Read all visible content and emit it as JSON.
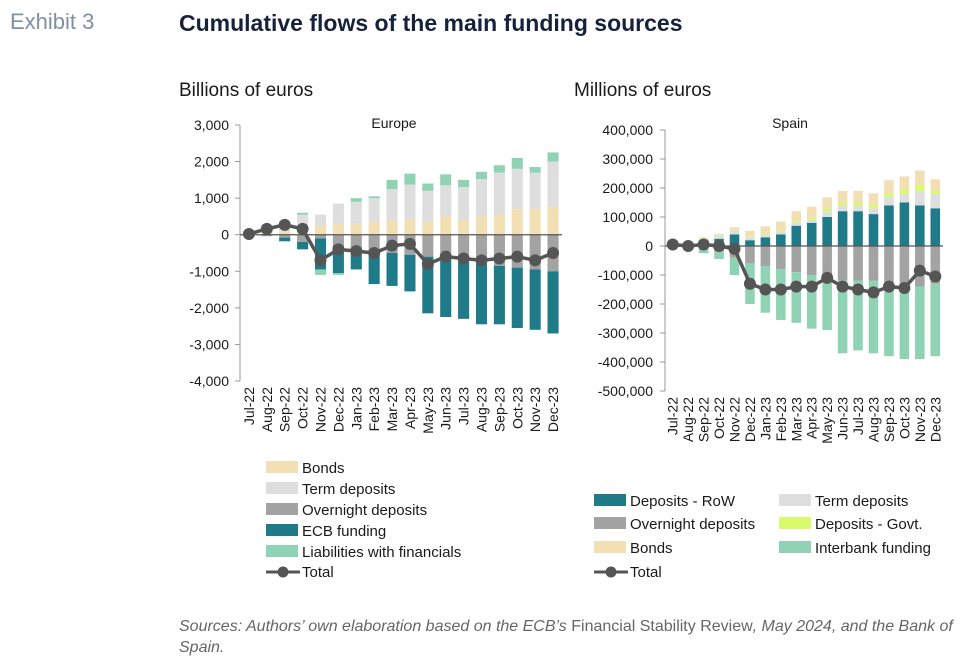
{
  "exhibit_label": "Exhibit 3",
  "title": "Cumulative flows of the main funding sources",
  "source": {
    "prefix": "Sources: Authors’ own elaboration based on the ECB’s ",
    "publication": "Financial Stability Review",
    "suffix": ", May 2024, and the Bank of Spain."
  },
  "chart_data": [
    {
      "type": "bar",
      "stacked": true,
      "subtitle": "Europe",
      "unit_label": "Billions of euros",
      "categories": [
        "Jul-22",
        "Aug-22",
        "Sep-22",
        "Oct-22",
        "Nov-22",
        "Dec-22",
        "Jan-23",
        "Feb-23",
        "Mar-23",
        "Apr-23",
        "May-23",
        "Jun-23",
        "Jul-23",
        "Aug-23",
        "Sep-23",
        "Oct-23",
        "Nov-23",
        "Dec-23"
      ],
      "ylim": [
        -4000,
        3000
      ],
      "yticks": [
        3000,
        2000,
        1000,
        0,
        -1000,
        -2000,
        -3000,
        -4000
      ],
      "ytick_labels": [
        "3,000",
        "2,000",
        "1,000",
        "0",
        "-1,000",
        "-2,000",
        "-3,000",
        "-4,000"
      ],
      "legend_position": "bottom",
      "series": [
        {
          "name": "Bonds",
          "color": "#f2dfb4",
          "values": [
            30,
            60,
            80,
            200,
            250,
            300,
            300,
            350,
            400,
            420,
            350,
            500,
            400,
            520,
            550,
            700,
            700,
            750
          ]
        },
        {
          "name": "Term deposits",
          "color": "#dedede",
          "values": [
            20,
            50,
            100,
            350,
            300,
            550,
            600,
            650,
            850,
            950,
            850,
            850,
            900,
            1000,
            1150,
            1100,
            1000,
            1250
          ]
        },
        {
          "name": "Overnight deposits",
          "color": "#a3a3a3",
          "values": [
            -20,
            -40,
            -80,
            -200,
            -100,
            -300,
            -350,
            -450,
            -500,
            -550,
            -600,
            -700,
            -750,
            -800,
            -850,
            -900,
            -950,
            -1000
          ]
        },
        {
          "name": "ECB funding",
          "color": "#1f7b88",
          "values": [
            0,
            0,
            -100,
            -200,
            -850,
            -750,
            -600,
            -900,
            -900,
            -1000,
            -1550,
            -1550,
            -1550,
            -1650,
            -1600,
            -1650,
            -1650,
            -1700
          ]
        },
        {
          "name": "Liabilities with financials",
          "color": "#90d3b4",
          "values": [
            40,
            90,
            180,
            50,
            -150,
            -50,
            100,
            50,
            250,
            300,
            200,
            300,
            200,
            200,
            200,
            300,
            150,
            250
          ]
        }
      ],
      "total": {
        "name": "Total",
        "color": "#555555",
        "values": [
          20,
          160,
          270,
          160,
          -700,
          -400,
          -450,
          -500,
          -300,
          -250,
          -800,
          -600,
          -650,
          -700,
          -650,
          -600,
          -700,
          -500
        ]
      }
    },
    {
      "type": "bar",
      "stacked": true,
      "subtitle": "Spain",
      "unit_label": "Millions of euros",
      "categories": [
        "Jul-22",
        "Aug-22",
        "Sep-22",
        "Oct-22",
        "Nov-22",
        "Dec-22",
        "Jan-23",
        "Feb-23",
        "Mar-23",
        "Apr-23",
        "May-23",
        "Jun-23",
        "Jul-23",
        "Aug-23",
        "Sep-23",
        "Oct-23",
        "Nov-23",
        "Dec-23"
      ],
      "ylim": [
        -500000,
        400000
      ],
      "yticks": [
        400000,
        300000,
        200000,
        100000,
        0,
        -100000,
        -200000,
        -300000,
        -400000,
        -500000
      ],
      "ytick_labels": [
        "400,000",
        "300,000",
        "200,000",
        "100,000",
        "0",
        "-100,000",
        "-200,000",
        "-300,000",
        "-400,000",
        "-500,000"
      ],
      "legend_position": "bottom",
      "series": [
        {
          "name": "Deposits - RoW",
          "color": "#1f7b88",
          "values": [
            3000,
            8000,
            20000,
            25000,
            40000,
            20000,
            30000,
            40000,
            70000,
            80000,
            100000,
            120000,
            120000,
            110000,
            140000,
            150000,
            140000,
            130000
          ]
        },
        {
          "name": "Term deposits",
          "color": "#dedede",
          "values": [
            2000,
            3000,
            5000,
            10000,
            15000,
            10000,
            10000,
            10000,
            10000,
            10000,
            20000,
            20000,
            20000,
            20000,
            30000,
            30000,
            50000,
            50000
          ]
        },
        {
          "name": "Overnight deposits",
          "color": "#a3a3a3",
          "values": [
            -3000,
            -5000,
            -10000,
            -20000,
            -40000,
            -60000,
            -70000,
            -80000,
            -90000,
            -100000,
            -110000,
            -120000,
            -120000,
            -120000,
            -130000,
            -140000,
            -140000,
            -130000
          ]
        },
        {
          "name": "Deposits - Govt.",
          "color": "#d9fa6a",
          "values": [
            1000,
            1000,
            2000,
            2000,
            2000,
            2000,
            3000,
            4000,
            5000,
            6000,
            8000,
            10000,
            10000,
            12000,
            12000,
            15000,
            20000,
            10000
          ]
        },
        {
          "name": "Bonds",
          "color": "#f2dfb4",
          "values": [
            1000,
            2000,
            3000,
            5000,
            8000,
            20000,
            25000,
            30000,
            35000,
            40000,
            40000,
            40000,
            40000,
            40000,
            45000,
            45000,
            50000,
            40000
          ]
        },
        {
          "name": "Interbank funding",
          "color": "#90d3b4",
          "values": [
            2000,
            -5000,
            -15000,
            -25000,
            -60000,
            -140000,
            -160000,
            -175000,
            -175000,
            -185000,
            -180000,
            -250000,
            -240000,
            -250000,
            -250000,
            -250000,
            -250000,
            -250000
          ]
        }
      ],
      "total": {
        "name": "Total",
        "color": "#555555",
        "values": [
          5000,
          0,
          5000,
          0,
          -10000,
          -130000,
          -150000,
          -150000,
          -140000,
          -140000,
          -110000,
          -140000,
          -150000,
          -160000,
          -140000,
          -145000,
          -85000,
          -105000
        ]
      }
    }
  ]
}
